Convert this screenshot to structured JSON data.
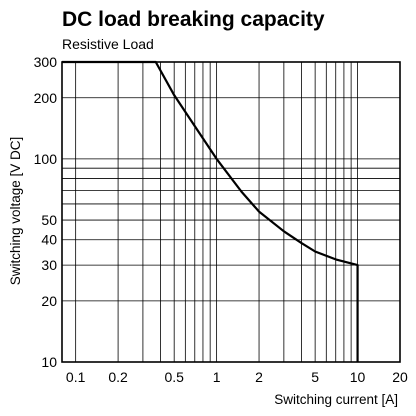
{
  "chart_data": {
    "type": "line",
    "title": "DC load breaking capacity",
    "subtitle": "Resistive Load",
    "xlabel": "Switching current [A]",
    "ylabel": "Switching voltage [V DC]",
    "x_scale": "log",
    "y_scale": "log",
    "xlim": [
      0.08,
      20
    ],
    "ylim": [
      10,
      300
    ],
    "grid": true,
    "x_ticks": [
      {
        "value": 0.1,
        "label": "0.1"
      },
      {
        "value": 0.2,
        "label": "0.2"
      },
      {
        "value": 0.5,
        "label": "0.5"
      },
      {
        "value": 1,
        "label": "1"
      },
      {
        "value": 2,
        "label": "2"
      },
      {
        "value": 5,
        "label": "5"
      },
      {
        "value": 10,
        "label": "10"
      },
      {
        "value": 20,
        "label": "20"
      }
    ],
    "y_ticks": [
      {
        "value": 10,
        "label": "10"
      },
      {
        "value": 20,
        "label": "20"
      },
      {
        "value": 30,
        "label": "30"
      },
      {
        "value": 40,
        "label": "40"
      },
      {
        "value": 50,
        "label": "50"
      },
      {
        "value": 100,
        "label": "100"
      },
      {
        "value": 200,
        "label": "200"
      },
      {
        "value": 300,
        "label": "300"
      }
    ],
    "x_grid": [
      0.1,
      0.2,
      0.3,
      0.4,
      0.5,
      0.6,
      0.7,
      0.8,
      0.9,
      1,
      2,
      3,
      4,
      5,
      6,
      7,
      8,
      9,
      10,
      20
    ],
    "y_grid": [
      10,
      20,
      30,
      40,
      50,
      60,
      70,
      80,
      90,
      100,
      200,
      300
    ],
    "series": [
      {
        "points": [
          {
            "x": 0.08,
            "y": 300
          },
          {
            "x": 0.37,
            "y": 300
          },
          {
            "x": 0.5,
            "y": 206
          },
          {
            "x": 0.7,
            "y": 145
          },
          {
            "x": 1,
            "y": 100
          },
          {
            "x": 1.5,
            "y": 69
          },
          {
            "x": 2,
            "y": 55
          },
          {
            "x": 3,
            "y": 44
          },
          {
            "x": 4,
            "y": 38.5
          },
          {
            "x": 5,
            "y": 35
          },
          {
            "x": 7,
            "y": 32
          },
          {
            "x": 10,
            "y": 30
          },
          {
            "x": 10,
            "y": 10
          }
        ]
      }
    ]
  }
}
